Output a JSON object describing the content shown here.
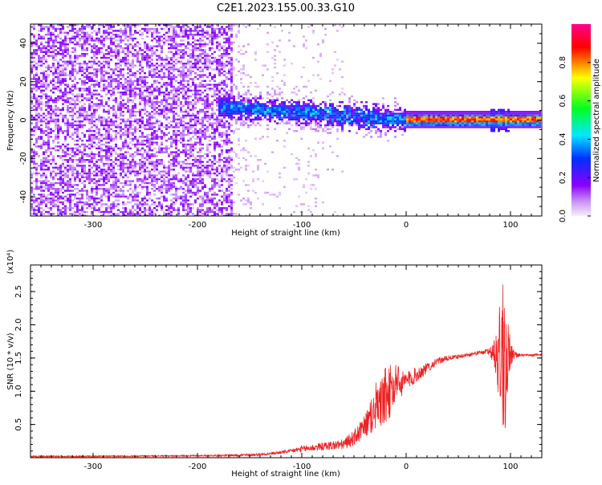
{
  "title": "C2E1.2023.155.00.33.G10",
  "chart_data": [
    {
      "type": "heatmap",
      "name": "spectrogram",
      "xlabel": "Height of straight line (km)",
      "ylabel": "Frequency (Hz)",
      "xlim": [
        -360,
        130
      ],
      "ylim": [
        -50,
        50
      ],
      "x_ticks": [
        -300,
        -200,
        -100,
        0,
        100
      ],
      "y_ticks": [
        -40,
        -20,
        0,
        20,
        40
      ],
      "colorbar": {
        "label": "Normalized spectral amplitude",
        "range": [
          0.0,
          1.0
        ],
        "ticks": [
          0.0,
          0.2,
          0.4,
          0.6,
          0.8
        ],
        "colors": [
          "#f4e9fb",
          "#8a00ff",
          "#0030ff",
          "#00e8ff",
          "#00ff20",
          "#ffff00",
          "#ff0000",
          "#ff0090"
        ]
      },
      "regions": [
        {
          "x_range": [
            -360,
            -165
          ],
          "freq_range": [
            -50,
            50
          ],
          "amplitude_range": [
            0.03,
            0.15
          ],
          "description": "broadband noise"
        },
        {
          "x_range": [
            -165,
            -150
          ],
          "freq_range": [
            -50,
            50
          ],
          "amplitude_range": [
            0.0,
            0.05
          ],
          "description": "sparse noise"
        },
        {
          "x_range": [
            -180,
            0
          ],
          "center_freq_start": 7,
          "center_freq_end": 0,
          "amplitude_range": [
            0.2,
            0.5
          ]
        },
        {
          "x_range": [
            0,
            130
          ],
          "center_freq": 0,
          "amplitude_range": [
            0.75,
            0.9
          ]
        }
      ]
    },
    {
      "type": "line",
      "name": "snr",
      "xlabel": "Height of straight line (km)",
      "ylabel": "SNR (10 * v/v)",
      "y_multiplier": "(x10⁴)",
      "xlim": [
        -360,
        130
      ],
      "ylim": [
        0,
        2.9
      ],
      "x_ticks": [
        -300,
        -200,
        -100,
        0,
        100
      ],
      "y_ticks": [
        0.5,
        1.0,
        1.5,
        2.0,
        2.5
      ],
      "color": "#ee2222",
      "series": [
        {
          "x": [
            -360,
            -300,
            -200,
            -150,
            -130,
            -110,
            -100,
            -80,
            -60,
            -50,
            -40,
            -30,
            -20,
            -15,
            -10,
            0,
            10,
            20,
            30,
            40,
            50,
            60,
            70,
            80,
            85,
            90,
            93,
            95,
            97,
            100,
            105,
            110,
            120,
            130
          ],
          "y": [
            0.02,
            0.02,
            0.03,
            0.04,
            0.06,
            0.1,
            0.13,
            0.17,
            0.2,
            0.3,
            0.45,
            0.7,
            0.9,
            1.0,
            1.05,
            1.15,
            1.25,
            1.35,
            1.45,
            1.5,
            1.52,
            1.55,
            1.58,
            1.6,
            1.6,
            1.55,
            1.4,
            1.5,
            1.6,
            1.55,
            1.55,
            1.54,
            1.54,
            1.55
          ],
          "noise_amplitude": [
            0.01,
            0.01,
            0.01,
            0.02,
            0.02,
            0.03,
            0.05,
            0.06,
            0.08,
            0.12,
            0.18,
            0.3,
            0.45,
            0.4,
            0.25,
            0.15,
            0.12,
            0.08,
            0.05,
            0.04,
            0.03,
            0.03,
            0.03,
            0.05,
            0.3,
            0.8,
            1.1,
            1.2,
            0.7,
            0.2,
            0.05,
            0.02,
            0.02,
            0.02
          ]
        }
      ]
    }
  ]
}
